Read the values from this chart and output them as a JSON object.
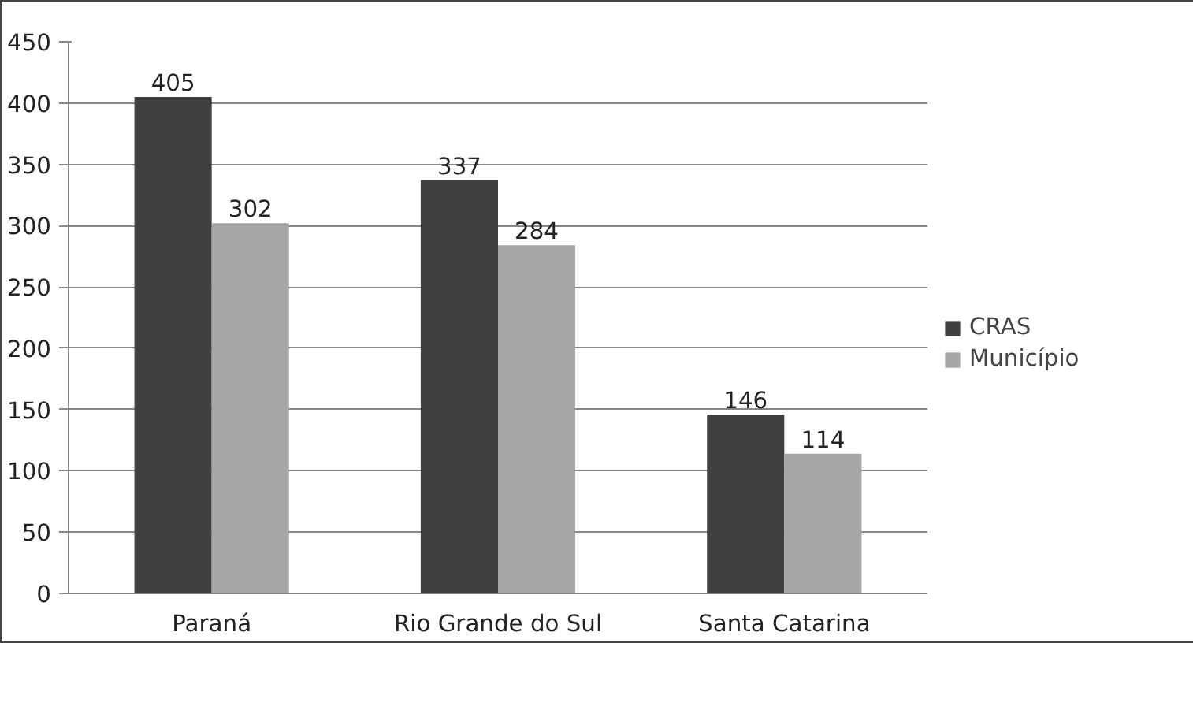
{
  "chart_data": {
    "type": "bar",
    "categories": [
      "Paraná",
      "Rio Grande do Sul",
      "Santa Catarina"
    ],
    "series": [
      {
        "name": "CRAS",
        "color": "#404040",
        "values": [
          405,
          337,
          146
        ]
      },
      {
        "name": "Município",
        "color": "#a6a6a6",
        "values": [
          302,
          284,
          114
        ]
      }
    ],
    "ylim": [
      0,
      450
    ],
    "yticks": [
      0,
      50,
      100,
      150,
      200,
      250,
      300,
      350,
      400,
      450
    ],
    "grid": "y",
    "legend": "right",
    "data_labels": true
  }
}
